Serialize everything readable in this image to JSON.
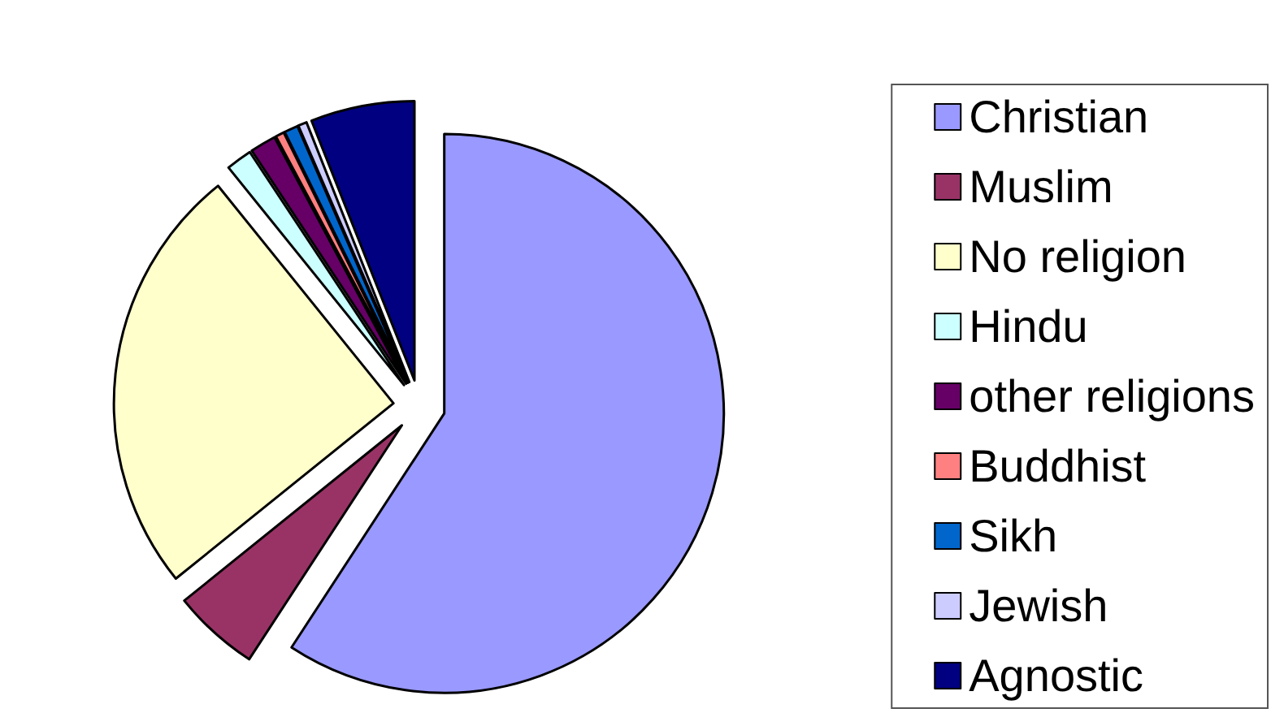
{
  "chart_data": {
    "type": "pie",
    "categories": [
      "Christian",
      "Muslim",
      "No religion",
      "Hindu",
      "other religions",
      "Buddhist",
      "Sikh",
      "Jewish",
      "Agnostic"
    ],
    "values": [
      59.2,
      5,
      25,
      1.5,
      1.5,
      0.5,
      0.8,
      0.5,
      6
    ],
    "colors": [
      "#9999ff",
      "#993366",
      "#ffffcc",
      "#ccffff",
      "#660066",
      "#ff8080",
      "#0066cc",
      "#ccccff",
      "#000080"
    ],
    "legend": "right"
  }
}
